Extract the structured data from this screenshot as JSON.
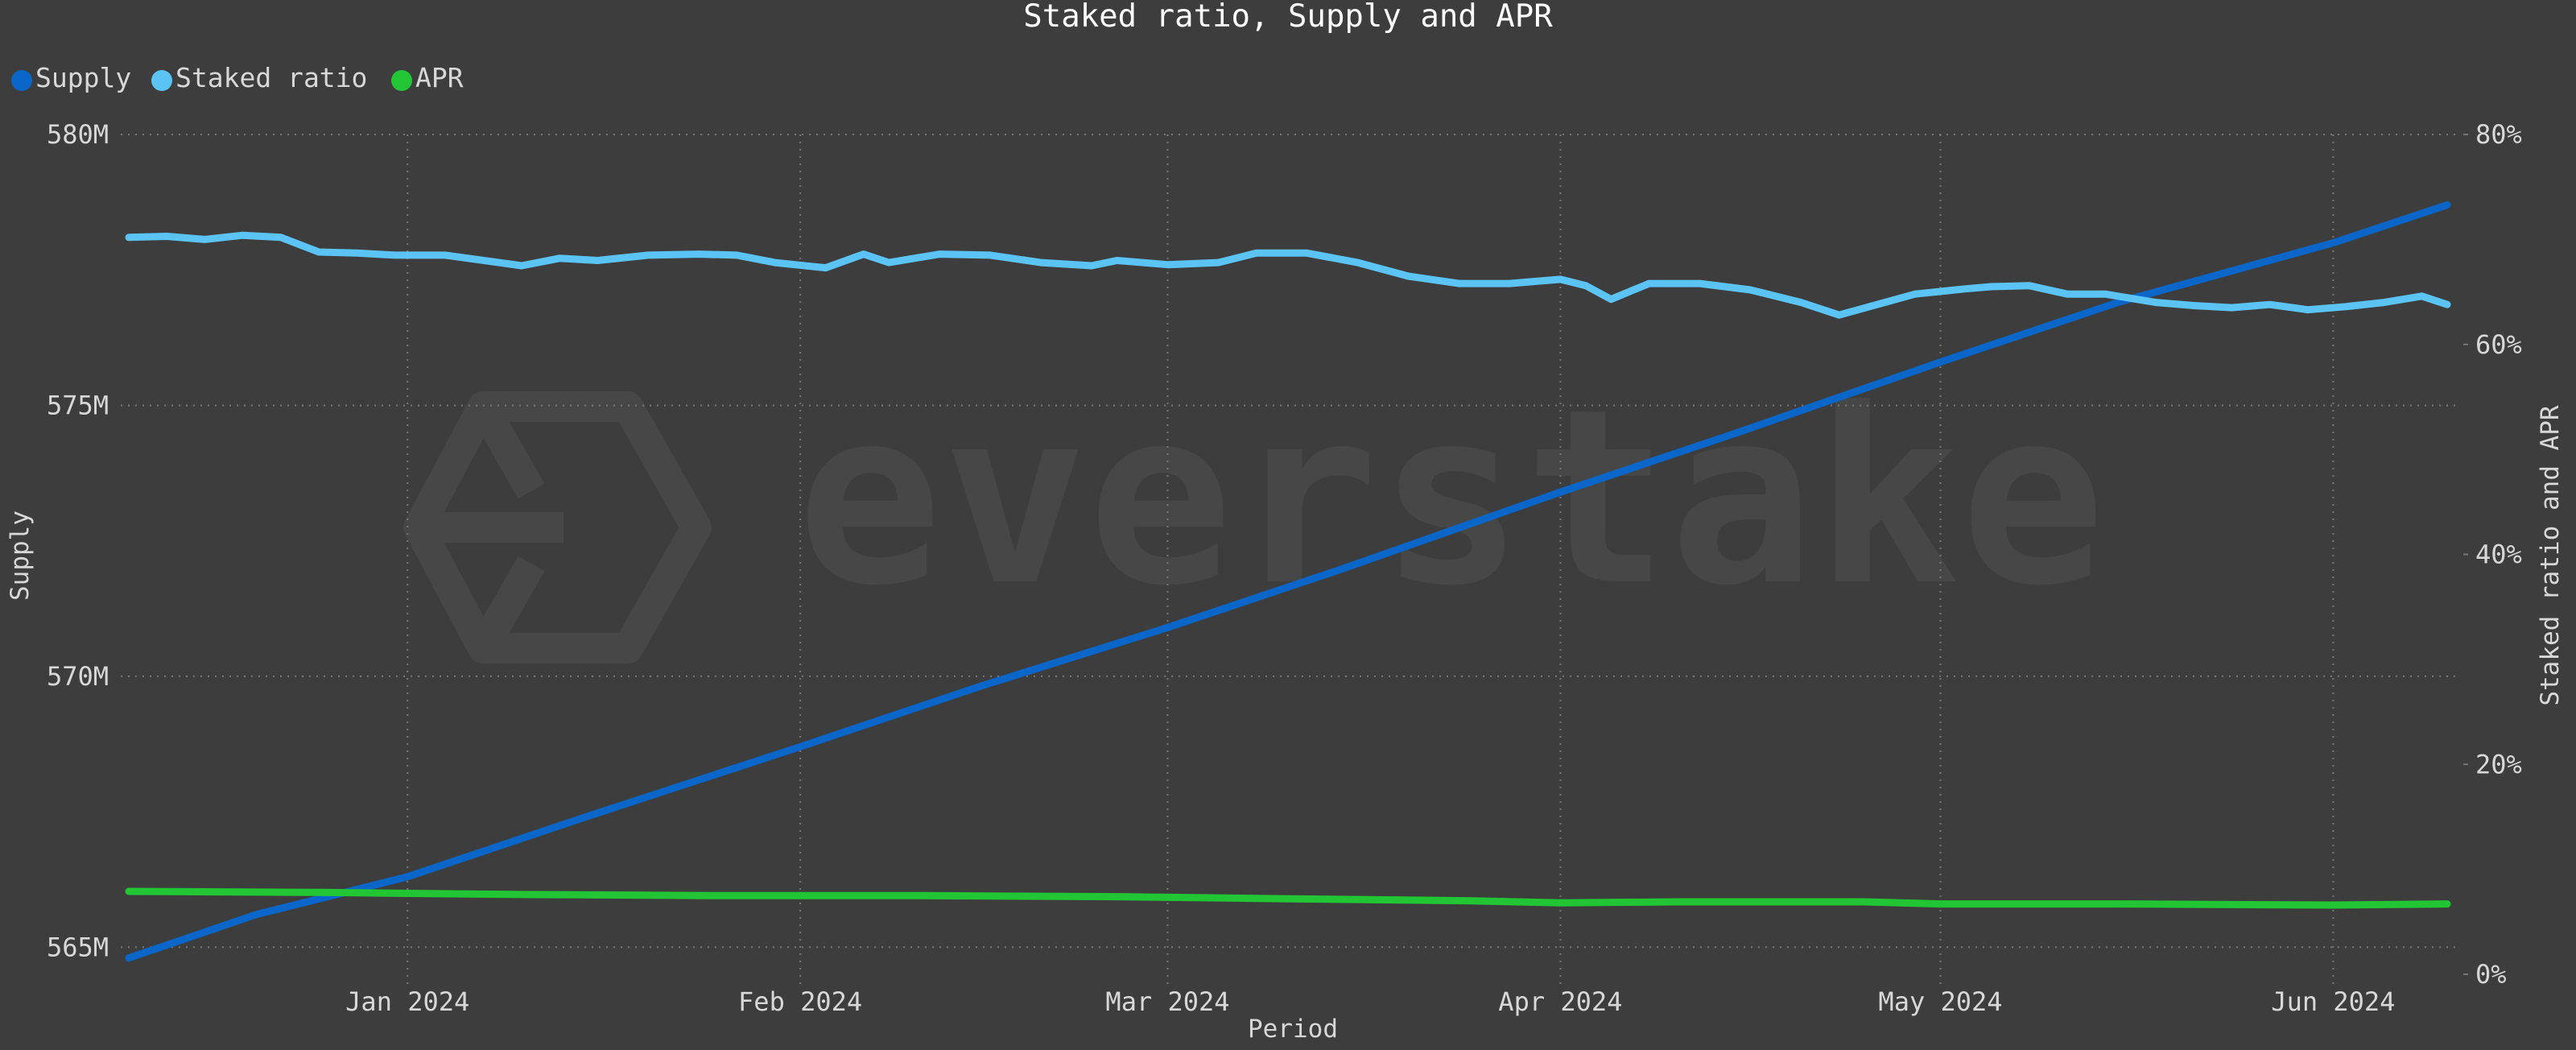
{
  "chart_data": {
    "type": "line",
    "title": "Staked ratio, Supply and APR",
    "xlabel": "Period",
    "ylabel_left": "Supply",
    "ylabel_right": "Staked ratio and APR",
    "watermark": "everstake",
    "x_range": [
      "2023-12-10",
      "2024-06-10"
    ],
    "x_ticks": [
      {
        "date": "2024-01-01",
        "label": "Jan 2024"
      },
      {
        "date": "2024-02-01",
        "label": "Feb 2024"
      },
      {
        "date": "2024-03-01",
        "label": "Mar 2024"
      },
      {
        "date": "2024-04-01",
        "label": "Apr 2024"
      },
      {
        "date": "2024-05-01",
        "label": "May 2024"
      },
      {
        "date": "2024-06-01",
        "label": "Jun 2024"
      }
    ],
    "y_left": {
      "min": 564.5,
      "max": 580,
      "unit": "M",
      "ticks": [
        {
          "value": 580,
          "label": "580M"
        },
        {
          "value": 575,
          "label": "575M"
        },
        {
          "value": 570,
          "label": "570M"
        },
        {
          "value": 565,
          "label": "565M"
        }
      ]
    },
    "y_right": {
      "min": 0,
      "max": 80,
      "unit": "%",
      "ticks": [
        {
          "value": 80,
          "label": "80%"
        },
        {
          "value": 60,
          "label": "60%"
        },
        {
          "value": 40,
          "label": "40%"
        },
        {
          "value": 20,
          "label": "20%"
        },
        {
          "value": 0,
          "label": "0%"
        }
      ]
    },
    "grid": true,
    "legend_position": "top-left",
    "legend": [
      "Supply",
      "Staked ratio",
      "APR"
    ],
    "series": [
      {
        "name": "Supply",
        "axis": "left",
        "color": "#0a66c8",
        "points": [
          [
            "2023-12-10",
            564.8
          ],
          [
            "2023-12-20",
            565.6
          ],
          [
            "2024-01-01",
            566.3
          ],
          [
            "2024-01-15",
            567.4
          ],
          [
            "2024-02-01",
            568.7
          ],
          [
            "2024-02-15",
            569.8
          ],
          [
            "2024-03-01",
            570.9
          ],
          [
            "2024-03-15",
            572.0
          ],
          [
            "2024-04-01",
            573.4
          ],
          [
            "2024-04-15",
            574.5
          ],
          [
            "2024-05-01",
            575.8
          ],
          [
            "2024-05-15",
            576.9
          ],
          [
            "2024-06-01",
            578.0
          ],
          [
            "2024-06-10",
            578.7
          ]
        ]
      },
      {
        "name": "Staked ratio",
        "axis": "right",
        "color": "#5cc4f5",
        "points": [
          [
            "2023-12-10",
            70.2
          ],
          [
            "2023-12-13",
            70.3
          ],
          [
            "2023-12-16",
            70.0
          ],
          [
            "2023-12-19",
            70.4
          ],
          [
            "2023-12-22",
            70.2
          ],
          [
            "2023-12-25",
            68.8
          ],
          [
            "2023-12-28",
            68.7
          ],
          [
            "2023-12-31",
            68.5
          ],
          [
            "2024-01-04",
            68.5
          ],
          [
            "2024-01-10",
            67.5
          ],
          [
            "2024-01-13",
            68.2
          ],
          [
            "2024-01-16",
            68.0
          ],
          [
            "2024-01-20",
            68.5
          ],
          [
            "2024-01-24",
            68.6
          ],
          [
            "2024-01-27",
            68.5
          ],
          [
            "2024-01-30",
            67.8
          ],
          [
            "2024-02-03",
            67.3
          ],
          [
            "2024-02-06",
            68.6
          ],
          [
            "2024-02-08",
            67.8
          ],
          [
            "2024-02-12",
            68.6
          ],
          [
            "2024-02-16",
            68.5
          ],
          [
            "2024-02-20",
            67.8
          ],
          [
            "2024-02-24",
            67.5
          ],
          [
            "2024-02-26",
            68.0
          ],
          [
            "2024-03-01",
            67.6
          ],
          [
            "2024-03-05",
            67.8
          ],
          [
            "2024-03-08",
            68.7
          ],
          [
            "2024-03-12",
            68.7
          ],
          [
            "2024-03-16",
            67.8
          ],
          [
            "2024-03-20",
            66.5
          ],
          [
            "2024-03-24",
            65.8
          ],
          [
            "2024-03-28",
            65.8
          ],
          [
            "2024-04-01",
            66.2
          ],
          [
            "2024-04-03",
            65.6
          ],
          [
            "2024-04-05",
            64.3
          ],
          [
            "2024-04-08",
            65.8
          ],
          [
            "2024-04-12",
            65.8
          ],
          [
            "2024-04-16",
            65.2
          ],
          [
            "2024-04-20",
            64.0
          ],
          [
            "2024-04-23",
            62.8
          ],
          [
            "2024-04-26",
            63.8
          ],
          [
            "2024-04-29",
            64.8
          ],
          [
            "2024-05-03",
            65.3
          ],
          [
            "2024-05-05",
            65.5
          ],
          [
            "2024-05-08",
            65.6
          ],
          [
            "2024-05-11",
            64.8
          ],
          [
            "2024-05-14",
            64.8
          ],
          [
            "2024-05-18",
            64.0
          ],
          [
            "2024-05-21",
            63.7
          ],
          [
            "2024-05-24",
            63.5
          ],
          [
            "2024-05-27",
            63.8
          ],
          [
            "2024-05-30",
            63.3
          ],
          [
            "2024-06-02",
            63.6
          ],
          [
            "2024-06-05",
            64.0
          ],
          [
            "2024-06-08",
            64.6
          ],
          [
            "2024-06-10",
            63.8
          ]
        ]
      },
      {
        "name": "APR",
        "axis": "right",
        "color": "#22c634",
        "points": [
          [
            "2023-12-10",
            7.9
          ],
          [
            "2023-12-25",
            7.8
          ],
          [
            "2024-01-10",
            7.6
          ],
          [
            "2024-01-25",
            7.5
          ],
          [
            "2024-02-10",
            7.5
          ],
          [
            "2024-02-25",
            7.4
          ],
          [
            "2024-03-10",
            7.2
          ],
          [
            "2024-03-25",
            7.0
          ],
          [
            "2024-04-01",
            6.8
          ],
          [
            "2024-04-10",
            6.9
          ],
          [
            "2024-04-25",
            6.9
          ],
          [
            "2024-05-01",
            6.7
          ],
          [
            "2024-05-15",
            6.7
          ],
          [
            "2024-06-01",
            6.6
          ],
          [
            "2024-06-10",
            6.7
          ]
        ]
      }
    ]
  }
}
